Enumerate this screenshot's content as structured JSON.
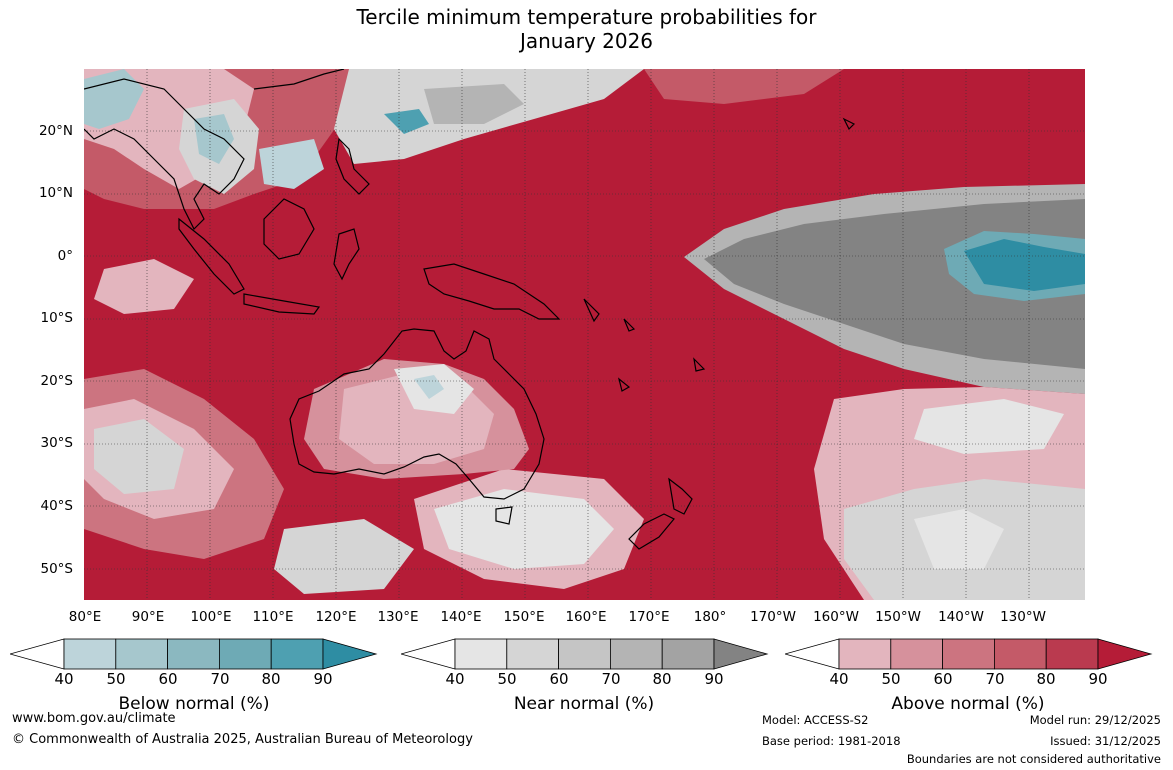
{
  "title": {
    "line1": "Tercile minimum temperature probabilities for",
    "line2": "January 2026"
  },
  "map": {
    "latitude_labels": [
      "20°N",
      "10°N",
      "0°",
      "10°S",
      "20°S",
      "30°S",
      "40°S",
      "50°S"
    ],
    "longitude_labels": [
      "80°E",
      "90°E",
      "100°E",
      "110°E",
      "120°E",
      "130°E",
      "140°E",
      "150°E",
      "160°E",
      "170°E",
      "180°",
      "170°W",
      "160°W",
      "150°W",
      "140°W",
      "130°W"
    ]
  },
  "legends": [
    {
      "label": "Below normal (%)",
      "ticks": [
        "40",
        "50",
        "60",
        "70",
        "80",
        "90"
      ],
      "colors": [
        "#bdd4da",
        "#a6c7cd",
        "#8bb8c0",
        "#6eaab5",
        "#4ea0b1",
        "#2e8da3"
      ]
    },
    {
      "label": "Near normal (%)",
      "ticks": [
        "40",
        "50",
        "60",
        "70",
        "80",
        "90"
      ],
      "colors": [
        "#e5e5e5",
        "#d5d5d5",
        "#c5c5c5",
        "#b4b4b4",
        "#a3a3a3",
        "#838383"
      ]
    },
    {
      "label": "Above normal (%)",
      "ticks": [
        "40",
        "50",
        "60",
        "70",
        "80",
        "90"
      ],
      "colors": [
        "#e3b5be",
        "#d6919c",
        "#cc7480",
        "#c45a68",
        "#ba3a4f",
        "#b51c37"
      ]
    }
  ],
  "footer": {
    "website": "www.bom.gov.au/climate",
    "copyright": "© Commonwealth of Australia 2025, Australian Bureau of Meteorology",
    "model": "Model: ACCESS-S2",
    "base_period": "Base period: 1981-2018",
    "model_run": "Model run: 29/12/2025",
    "issued": "Issued: 31/12/2025",
    "disclaimer": "Boundaries are not considered authoritative"
  }
}
